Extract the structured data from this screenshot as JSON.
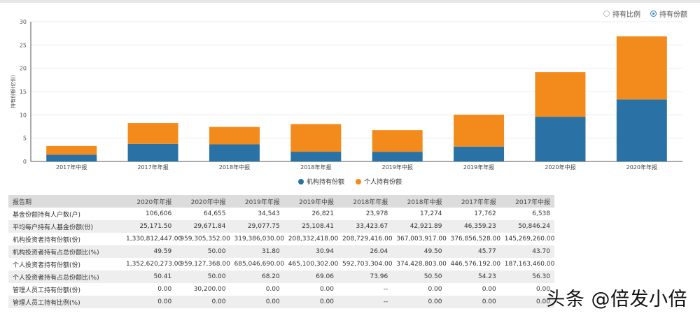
{
  "toggle": {
    "options": [
      {
        "label": "持有比例",
        "selected": false
      },
      {
        "label": "持有份额",
        "selected": true
      }
    ],
    "accent": "#2f7ec1"
  },
  "chart_data": {
    "type": "bar",
    "stacked": true,
    "ylabel": "持有份额(亿份)",
    "ylim": [
      0,
      30
    ],
    "yticks": [
      0,
      5,
      10,
      15,
      20,
      25,
      30
    ],
    "categories": [
      "2017年中报",
      "2017年年报",
      "2018年中报",
      "2018年年报",
      "2019年中报",
      "2019年年报",
      "2020年中报",
      "2020年年报"
    ],
    "series": [
      {
        "name": "机构持有份额",
        "color": "#2a72a5",
        "values": [
          1.45,
          3.77,
          3.67,
          2.09,
          2.08,
          3.19,
          9.59,
          13.31
        ]
      },
      {
        "name": "个人持有份额",
        "color": "#f28b1c",
        "values": [
          1.87,
          4.47,
          3.74,
          5.93,
          4.65,
          6.85,
          9.59,
          13.53
        ]
      }
    ],
    "grid": true,
    "legend_position": "bottom-center"
  },
  "table": {
    "header": [
      "报告期",
      "2020年年报",
      "2020年中报",
      "2019年年报",
      "2019年中报",
      "2018年年报",
      "2018年中报",
      "2017年年报",
      "2017年中报"
    ],
    "rows": [
      [
        "基金份额持有人户数(户)",
        "106,606",
        "64,655",
        "34,543",
        "26,821",
        "23,978",
        "17,274",
        "17,762",
        "6,538"
      ],
      [
        "平均每户持有人基金份额(份)",
        "25,171.50",
        "29,671.84",
        "29,077.75",
        "25,108.41",
        "33,423.67",
        "42,921.89",
        "46,359.23",
        "50,846.24"
      ],
      [
        "机构投资者持有份额(份)",
        "1,330,812,447.00",
        "959,305,352.00",
        "319,386,030.00",
        "208,332,418.00",
        "208,729,416.00",
        "367,003,917.00",
        "376,856,528.00",
        "145,269,260.00"
      ],
      [
        "机构投资者持有占总份额比(%)",
        "49.59",
        "50.00",
        "31.80",
        "30.94",
        "26.04",
        "49.50",
        "45.77",
        "43.70"
      ],
      [
        "个人投资者持有份额(份)",
        "1,352,620,273.00",
        "959,127,368.00",
        "685,046,690.00",
        "465,100,302.00",
        "592,703,304.00",
        "374,428,803.00",
        "446,576,192.00",
        "187,163,460.00"
      ],
      [
        "个人投资者持有占总份额比(%)",
        "50.41",
        "50.00",
        "68.20",
        "69.06",
        "73.96",
        "50.50",
        "54.23",
        "56.30"
      ],
      [
        "管理人员工持有份额(份)",
        "0.00",
        "30,200.00",
        "0.00",
        "0.00",
        "--",
        "0.00",
        "0.00",
        "0.00"
      ],
      [
        "管理人员工持有比例(%)",
        "0.00",
        "0.00",
        "0.00",
        "0.00",
        "--",
        "0.00",
        "0.00",
        "0.00"
      ]
    ]
  },
  "watermark": "头条 @倍发小倍"
}
